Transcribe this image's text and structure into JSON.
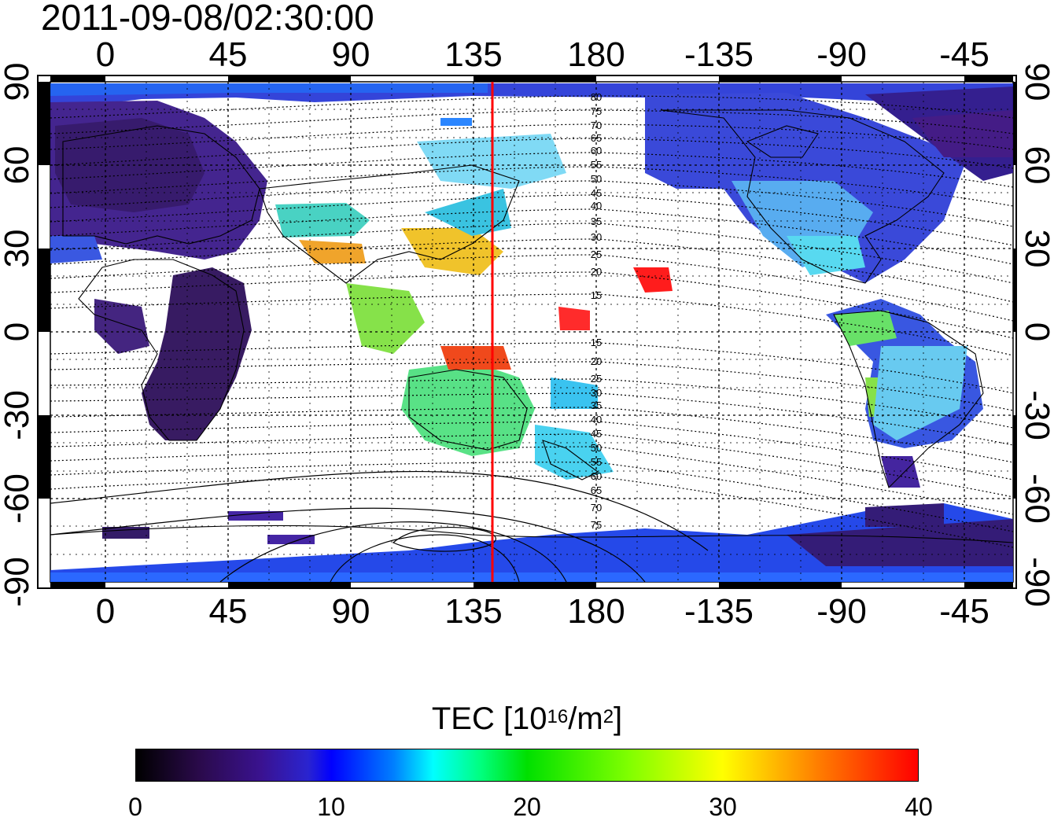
{
  "timestamp": "2011-09-08/02:30:00",
  "map": {
    "top_lon_ticks": [
      "0",
      "45",
      "90",
      "135",
      "180",
      "-135",
      "-90",
      "-45"
    ],
    "bottom_lon_ticks": [
      "0",
      "45",
      "90",
      "135",
      "180",
      "-135",
      "-90",
      "-45"
    ],
    "left_lat_ticks": [
      "90",
      "60",
      "30",
      "0",
      "-30",
      "-60",
      "-90"
    ],
    "right_lat_ticks": [
      "90",
      "60",
      "30",
      "0",
      "-30",
      "-60",
      "-90"
    ],
    "red_meridian_lon": 141,
    "contour_labels_north": [
      "80",
      "75",
      "70",
      "65",
      "60",
      "55",
      "50",
      "45",
      "40",
      "35",
      "30",
      "25",
      "20",
      "15"
    ],
    "contour_labels_south": [
      "15",
      "20",
      "25",
      "30",
      "35",
      "40",
      "45",
      "50",
      "55",
      "60",
      "65",
      "70",
      "75"
    ]
  },
  "colorbar": {
    "title_prefix": "TEC  [10",
    "title_exp": "16",
    "title_mid": "/m",
    "title_exp2": "2",
    "title_suffix": "]",
    "ticks": [
      "0",
      "10",
      "20",
      "30",
      "40"
    ],
    "range": [
      0,
      40
    ]
  },
  "colors": {
    "meridian": "#ff0000",
    "frame": "#000000"
  }
}
